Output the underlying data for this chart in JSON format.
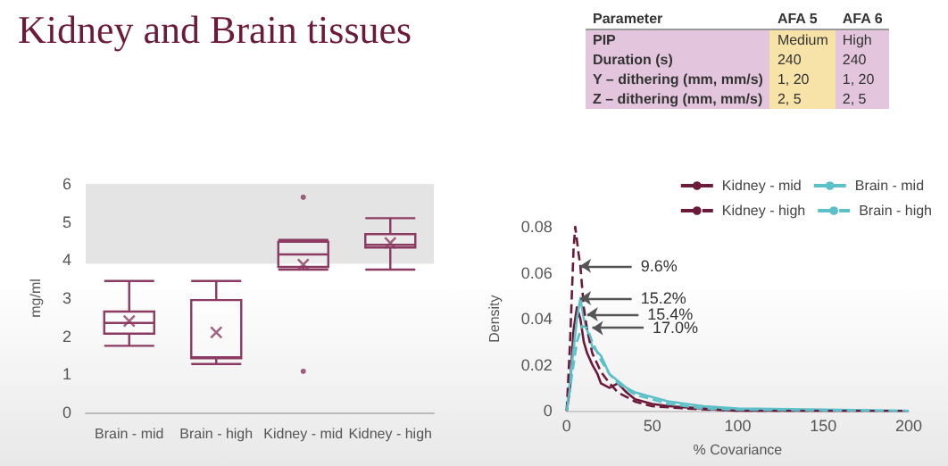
{
  "chart_data": [
    {
      "type": "other",
      "title": "Kidney and Brain tissues",
      "annotations": [
        "Parameter",
        "AFA 5",
        "AFA 6",
        "PIP",
        "Medium",
        "High",
        "Duration (s)",
        "240",
        "240",
        "Y – dithering (mm, mm/s)",
        "1, 20",
        "1, 20",
        "Z – dithering (mm, mm/s)",
        "2, 5",
        "2, 5"
      ]
    },
    {
      "type": "box",
      "categories": [
        "Brain - mid",
        "Brain - high",
        "Kidney - mid",
        "Kidney - high"
      ],
      "ylabel": "mg/ml",
      "ylim": [
        0,
        6
      ],
      "yticks": [
        0,
        1,
        2,
        3,
        4,
        5,
        6
      ],
      "grid": false,
      "color": "#8b3a62",
      "boxes": [
        {
          "low": 1.75,
          "q1": 2.07,
          "median": 2.35,
          "q3": 2.65,
          "high": 3.45,
          "mean": 2.4
        },
        {
          "low": 1.27,
          "q1": 1.42,
          "median": 1.45,
          "q3": 2.95,
          "high": 3.45,
          "mean": 2.1
        },
        {
          "low": 3.75,
          "q1": 3.82,
          "median": 4.15,
          "q3": 4.48,
          "high": 4.53,
          "mean": 3.88,
          "outliers": [
            5.65,
            1.08
          ]
        },
        {
          "low": 3.75,
          "q1": 4.33,
          "median": 4.4,
          "q3": 4.68,
          "high": 5.1,
          "mean": 4.45
        }
      ],
      "bands": [
        {
          "axis": "y",
          "from": 3.9,
          "to": 6,
          "color": "#e4e4e4"
        }
      ]
    },
    {
      "type": "line",
      "xlabel": "% Covariance",
      "ylabel": "Density",
      "xlim": [
        0,
        200
      ],
      "xticks": [
        0,
        50,
        100,
        150,
        200
      ],
      "ylim": [
        0,
        0.08
      ],
      "yticks": [
        0,
        0.02,
        0.04,
        0.06,
        0.08
      ],
      "grid": false,
      "legend": "top right",
      "marker": "none",
      "series": [
        {
          "name": "Kidney - mid",
          "color": "#6b1a3a",
          "line_style": "solid",
          "x": [
            0,
            2,
            4,
            6,
            8,
            10,
            12,
            15,
            18,
            20,
            25,
            30,
            35,
            40,
            50,
            60,
            80,
            100,
            200
          ],
          "values": [
            0,
            0.01,
            0.035,
            0.045,
            0.04,
            0.03,
            0.025,
            0.02,
            0.016,
            0.012,
            0.01,
            0.012,
            0.008,
            0.005,
            0.003,
            0.002,
            0.001,
            0,
            0
          ]
        },
        {
          "name": "Brain - mid",
          "color": "#5bc0c8",
          "line_style": "solid",
          "x": [
            0,
            3,
            6,
            8,
            10,
            12,
            15,
            20,
            25,
            30,
            35,
            40,
            50,
            60,
            70,
            80,
            100,
            150,
            200
          ],
          "values": [
            0,
            0.02,
            0.04,
            0.049,
            0.04,
            0.035,
            0.028,
            0.024,
            0.016,
            0.013,
            0.01,
            0.008,
            0.006,
            0.004,
            0.003,
            0.002,
            0.001,
            0.0005,
            0
          ]
        },
        {
          "name": "Kidney - high",
          "color": "#6b1a3a",
          "line_style": "dashed",
          "x": [
            0,
            2,
            4,
            5,
            7,
            8,
            10,
            12,
            15,
            20,
            25,
            30,
            40,
            50,
            70,
            100,
            200
          ],
          "values": [
            0,
            0.03,
            0.07,
            0.08,
            0.068,
            0.063,
            0.045,
            0.035,
            0.025,
            0.017,
            0.012,
            0.008,
            0.004,
            0.002,
            0.001,
            0,
            0
          ]
        },
        {
          "name": "Brain - high",
          "color": "#5bc0c8",
          "line_style": "dashed",
          "x": [
            0,
            3,
            6,
            9,
            12,
            15,
            20,
            25,
            30,
            40,
            50,
            60,
            80,
            100,
            200
          ],
          "values": [
            0,
            0.015,
            0.03,
            0.037,
            0.036,
            0.03,
            0.022,
            0.016,
            0.012,
            0.007,
            0.005,
            0.003,
            0.001,
            0.0005,
            0
          ]
        }
      ],
      "annotations": [
        {
          "text": "9.6%",
          "x": 8,
          "y": 0.063
        },
        {
          "text": "15.2%",
          "x": 8,
          "y": 0.049
        },
        {
          "text": "15.4%",
          "x": 12,
          "y": 0.042
        },
        {
          "text": "17.0%",
          "x": 15,
          "y": 0.036
        }
      ]
    }
  ]
}
